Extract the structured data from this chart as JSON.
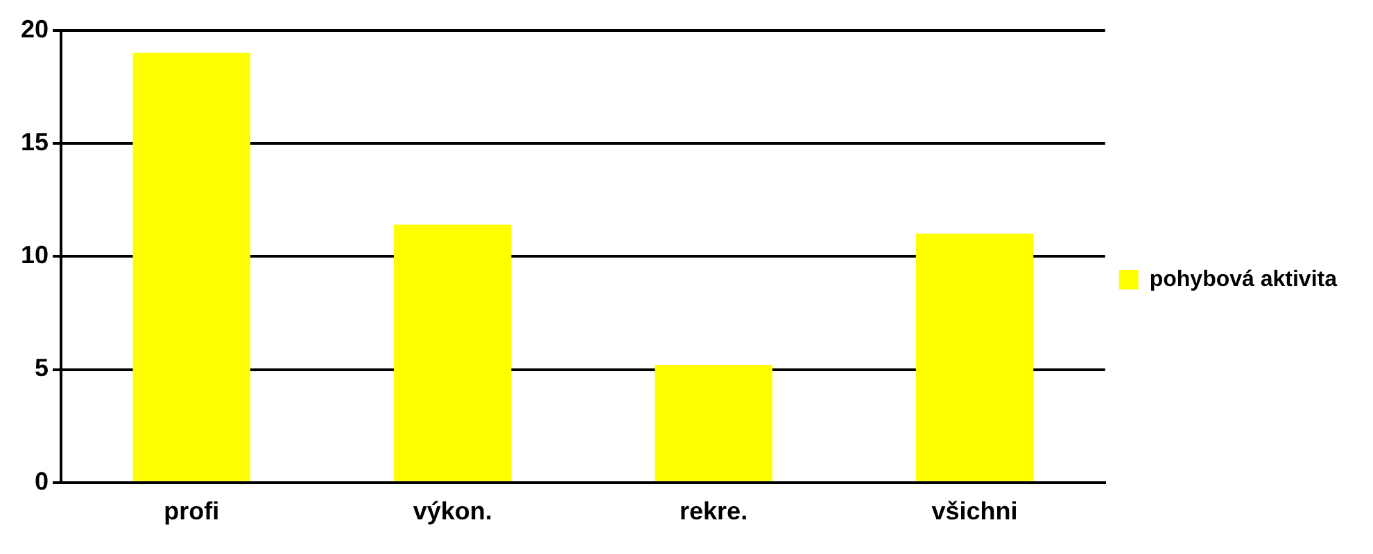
{
  "chart_data": {
    "type": "bar",
    "categories": [
      "profi",
      "výkon.",
      "rekre.",
      "všichni"
    ],
    "series": [
      {
        "name": "pohybová aktivita",
        "color": "#ffff00",
        "values": [
          19,
          11.4,
          5.2,
          11
        ]
      }
    ],
    "ylim": [
      0,
      20
    ],
    "yticks": [
      0,
      5,
      10,
      15,
      20
    ],
    "grid": "y",
    "legend": "right"
  }
}
